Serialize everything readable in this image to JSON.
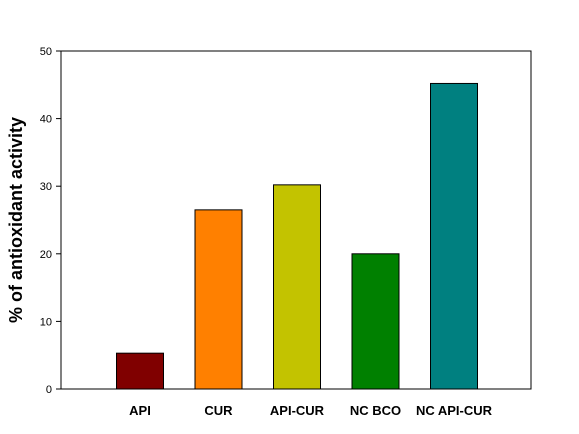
{
  "chart_data": {
    "type": "bar",
    "title": "",
    "xlabel": "",
    "ylabel": "% of antioxidant activity",
    "categories": [
      "API",
      "CUR",
      "API-CUR",
      "NC BCO",
      "NC API-CUR"
    ],
    "values": [
      5.3,
      26.5,
      30.2,
      20.0,
      45.2
    ],
    "colors": [
      "#800000",
      "#FF8000",
      "#C3C300",
      "#008000",
      "#008080"
    ],
    "ylim": [
      0,
      50
    ],
    "yticks": [
      0,
      10,
      20,
      30,
      40,
      50
    ],
    "grid": false,
    "legend": "none"
  }
}
